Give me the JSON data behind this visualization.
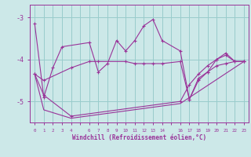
{
  "background_color": "#cce8e8",
  "grid_color": "#99cccc",
  "line_color": "#993399",
  "xlabel": "Windchill (Refroidissement éolien,°C)",
  "xlim": [
    -0.5,
    23.5
  ],
  "ylim": [
    -5.5,
    -2.7
  ],
  "yticks": [
    -5,
    -4,
    -3
  ],
  "ytick_labels": [
    "-5",
    "-4",
    "-3"
  ],
  "xtick_positions": [
    0,
    1,
    2,
    3,
    4,
    5,
    6,
    7,
    8,
    9,
    10,
    11,
    12,
    13,
    14,
    15,
    16,
    17,
    18,
    19,
    20,
    21,
    22,
    23
  ],
  "xtick_labels": [
    "0",
    "1",
    "2",
    "3",
    "4",
    "",
    "6",
    "7",
    "8",
    "9",
    "10",
    "11",
    "12",
    "13",
    "14",
    "",
    "16",
    "17",
    "18",
    "19",
    "20",
    "21",
    "22",
    "23"
  ],
  "line1_x": [
    0,
    1,
    2,
    3,
    6,
    7,
    8,
    9,
    10,
    11,
    12,
    13,
    14,
    16,
    17,
    18,
    19,
    20,
    21,
    22,
    23
  ],
  "line1_y": [
    -3.15,
    -4.9,
    -4.2,
    -3.7,
    -3.6,
    -4.3,
    -4.1,
    -3.55,
    -3.8,
    -3.55,
    -3.2,
    -3.05,
    -3.55,
    -3.8,
    -4.95,
    -4.5,
    -4.3,
    -4.0,
    -3.85,
    -4.05,
    -4.05
  ],
  "line2_x": [
    0,
    1,
    4,
    6,
    7,
    10,
    11,
    12,
    13,
    14,
    16,
    17,
    18,
    19,
    20,
    21,
    22,
    23
  ],
  "line2_y": [
    -4.35,
    -4.5,
    -4.2,
    -4.05,
    -4.05,
    -4.05,
    -4.1,
    -4.1,
    -4.1,
    -4.1,
    -4.05,
    -4.95,
    -4.45,
    -4.3,
    -4.15,
    -4.1,
    -4.05,
    -4.05
  ],
  "line3_x": [
    0,
    1,
    4,
    16,
    17,
    18,
    19,
    20,
    21,
    22,
    23
  ],
  "line3_y": [
    -4.35,
    -4.85,
    -5.35,
    -5.0,
    -4.6,
    -4.35,
    -4.15,
    -4.0,
    -3.9,
    -4.05,
    -4.05
  ],
  "line4_x": [
    0,
    1,
    4,
    16,
    23
  ],
  "line4_y": [
    -4.35,
    -5.2,
    -5.4,
    -5.05,
    -4.05
  ]
}
